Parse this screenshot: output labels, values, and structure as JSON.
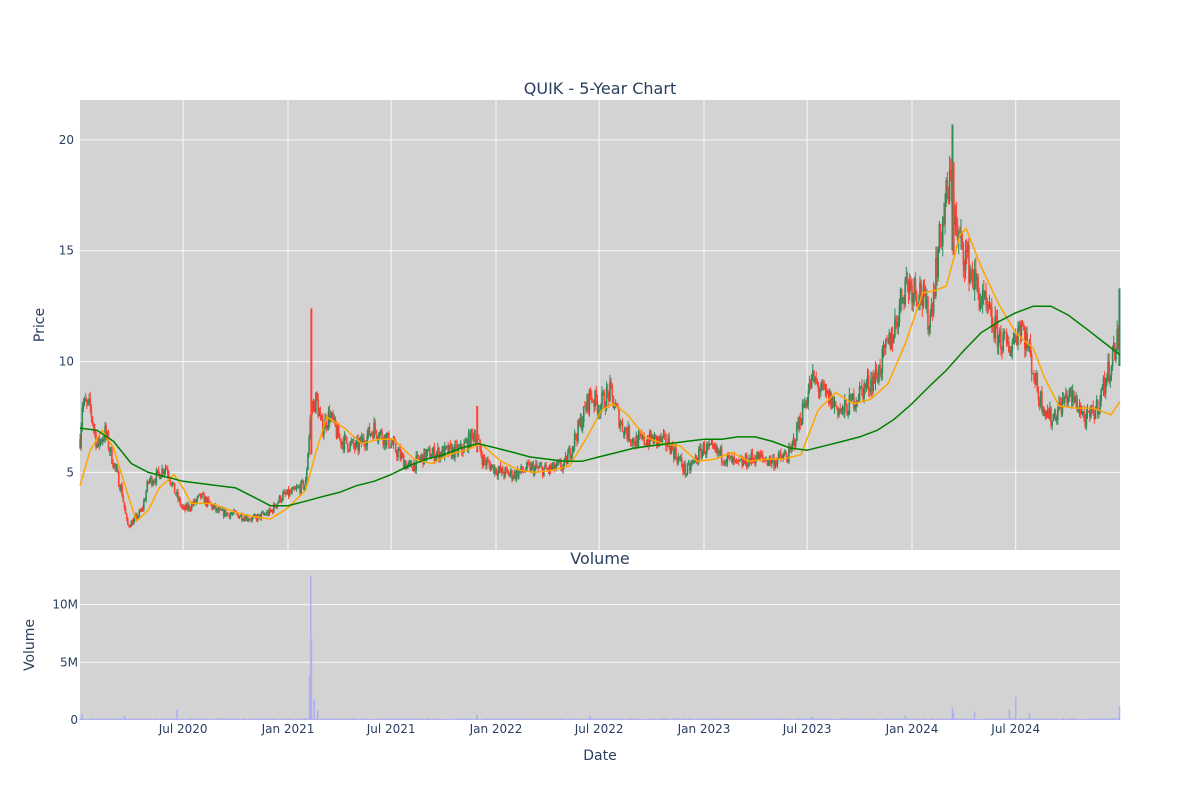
{
  "chart_data": [
    {
      "type": "candlestick",
      "title": "QUIK - 5-Year Chart",
      "ylabel": "Price",
      "xlim": [
        "2020-01-02",
        "2024-12-31"
      ],
      "ylim": [
        1.5,
        21.8
      ],
      "yticks": [
        5,
        10,
        15,
        20
      ],
      "xticks": [
        {
          "date": "2020-07-01",
          "label": "Jul 2020"
        },
        {
          "date": "2021-01-01",
          "label": "Jan 2021"
        },
        {
          "date": "2021-07-01",
          "label": "Jul 2021"
        },
        {
          "date": "2022-01-01",
          "label": "Jan 2022"
        },
        {
          "date": "2022-07-01",
          "label": "Jul 2022"
        },
        {
          "date": "2023-01-01",
          "label": "Jan 2023"
        },
        {
          "date": "2023-07-01",
          "label": "Jul 2023"
        },
        {
          "date": "2024-01-01",
          "label": "Jan 2024"
        },
        {
          "date": "2024-07-01",
          "label": "Jul 2024"
        }
      ],
      "colors": {
        "up": "#2e8b57",
        "down": "#ff4136",
        "ma_short": "#ffa500",
        "ma_long": "#008000",
        "plot_bg": "#d3d3d3"
      },
      "close_path": [
        [
          "2020-01-02",
          6.5
        ],
        [
          "2020-01-06",
          8.1
        ],
        [
          "2020-01-20",
          7.9
        ],
        [
          "2020-02-01",
          6.2
        ],
        [
          "2020-02-15",
          6.8
        ],
        [
          "2020-03-01",
          5.4
        ],
        [
          "2020-03-15",
          4.2
        ],
        [
          "2020-03-25",
          2.6
        ],
        [
          "2020-04-05",
          2.8
        ],
        [
          "2020-04-20",
          3.3
        ],
        [
          "2020-05-01",
          4.6
        ],
        [
          "2020-05-15",
          4.8
        ],
        [
          "2020-06-01",
          5.3
        ],
        [
          "2020-06-15",
          4.2
        ],
        [
          "2020-07-01",
          3.3
        ],
        [
          "2020-07-15",
          3.5
        ],
        [
          "2020-08-01",
          3.9
        ],
        [
          "2020-09-01",
          3.2
        ],
        [
          "2020-10-01",
          3.1
        ],
        [
          "2020-11-01",
          2.9
        ],
        [
          "2020-12-01",
          3.2
        ],
        [
          "2020-12-20",
          3.9
        ],
        [
          "2021-01-10",
          4.1
        ],
        [
          "2021-02-01",
          4.5
        ],
        [
          "2021-02-10",
          7.8
        ],
        [
          "2021-02-20",
          8.3
        ],
        [
          "2021-03-01",
          7.0
        ],
        [
          "2021-03-15",
          7.6
        ],
        [
          "2021-04-01",
          6.5
        ],
        [
          "2021-05-01",
          6.1
        ],
        [
          "2021-06-01",
          7.0
        ],
        [
          "2021-07-01",
          6.3
        ],
        [
          "2021-08-01",
          5.2
        ],
        [
          "2021-09-01",
          5.8
        ],
        [
          "2021-10-01",
          5.9
        ],
        [
          "2021-11-01",
          6.0
        ],
        [
          "2021-11-25",
          6.8
        ],
        [
          "2021-12-10",
          5.5
        ],
        [
          "2022-01-10",
          5.0
        ],
        [
          "2022-02-01",
          4.9
        ],
        [
          "2022-03-01",
          5.2
        ],
        [
          "2022-04-01",
          5.1
        ],
        [
          "2022-05-01",
          5.3
        ],
        [
          "2022-06-01",
          7.4
        ],
        [
          "2022-06-15",
          8.5
        ],
        [
          "2022-07-01",
          8.0
        ],
        [
          "2022-07-20",
          8.6
        ],
        [
          "2022-08-10",
          7.1
        ],
        [
          "2022-09-01",
          6.4
        ],
        [
          "2022-10-01",
          6.5
        ],
        [
          "2022-11-01",
          6.3
        ],
        [
          "2022-12-01",
          5.0
        ],
        [
          "2023-01-01",
          6.1
        ],
        [
          "2023-02-01",
          5.8
        ],
        [
          "2023-03-01",
          5.3
        ],
        [
          "2023-04-01",
          5.7
        ],
        [
          "2023-05-01",
          5.5
        ],
        [
          "2023-06-01",
          5.8
        ],
        [
          "2023-06-25",
          8.0
        ],
        [
          "2023-07-10",
          9.2
        ],
        [
          "2023-08-01",
          8.5
        ],
        [
          "2023-09-01",
          7.7
        ],
        [
          "2023-10-01",
          8.6
        ],
        [
          "2023-11-01",
          9.4
        ],
        [
          "2023-12-01",
          11.5
        ],
        [
          "2023-12-20",
          13.6
        ],
        [
          "2024-01-15",
          13.2
        ],
        [
          "2024-02-01",
          11.8
        ],
        [
          "2024-02-15",
          14.8
        ],
        [
          "2024-03-01",
          17.3
        ],
        [
          "2024-03-10",
          18.1
        ],
        [
          "2024-03-20",
          15.5
        ],
        [
          "2024-04-01",
          15.0
        ],
        [
          "2024-05-01",
          12.8
        ],
        [
          "2024-06-01",
          11.1
        ],
        [
          "2024-06-20",
          10.6
        ],
        [
          "2024-07-10",
          11.8
        ],
        [
          "2024-07-25",
          10.4
        ],
        [
          "2024-08-10",
          8.5
        ],
        [
          "2024-09-01",
          7.4
        ],
        [
          "2024-10-01",
          8.5
        ],
        [
          "2024-10-20",
          8.0
        ],
        [
          "2024-11-01",
          7.3
        ],
        [
          "2024-11-20",
          7.9
        ],
        [
          "2024-12-10",
          9.5
        ],
        [
          "2024-12-31",
          11.4
        ]
      ],
      "spikes": [
        [
          "2021-02-11",
          12.4,
          5.8,
          "down"
        ],
        [
          "2021-11-29",
          8.0,
          5.9,
          "down"
        ],
        [
          "2024-03-12",
          20.7,
          15.0,
          "up"
        ],
        [
          "2024-03-14",
          19.0,
          14.8,
          "down"
        ],
        [
          "2024-12-30",
          13.3,
          9.8,
          "up"
        ]
      ],
      "series": [
        {
          "kind": "ma_short",
          "points": [
            [
              "2020-01-02",
              4.4
            ],
            [
              "2020-01-20",
              6.0
            ],
            [
              "2020-02-10",
              6.9
            ],
            [
              "2020-03-01",
              6.1
            ],
            [
              "2020-03-20",
              4.5
            ],
            [
              "2020-04-10",
              2.8
            ],
            [
              "2020-05-01",
              3.3
            ],
            [
              "2020-05-20",
              4.3
            ],
            [
              "2020-06-15",
              4.9
            ],
            [
              "2020-07-01",
              4.3
            ],
            [
              "2020-07-15",
              3.6
            ],
            [
              "2020-08-20",
              3.6
            ],
            [
              "2020-10-01",
              3.2
            ],
            [
              "2020-11-01",
              3.0
            ],
            [
              "2020-12-01",
              2.9
            ],
            [
              "2021-01-01",
              3.4
            ],
            [
              "2021-02-01",
              4.2
            ],
            [
              "2021-02-20",
              6.0
            ],
            [
              "2021-03-10",
              7.5
            ],
            [
              "2021-04-10",
              7.0
            ],
            [
              "2021-05-10",
              6.3
            ],
            [
              "2021-06-10",
              6.5
            ],
            [
              "2021-07-05",
              6.5
            ],
            [
              "2021-08-10",
              5.6
            ],
            [
              "2021-09-10",
              5.4
            ],
            [
              "2021-10-10",
              5.8
            ],
            [
              "2021-11-10",
              6.0
            ],
            [
              "2021-12-05",
              6.3
            ],
            [
              "2022-01-10",
              5.5
            ],
            [
              "2022-02-10",
              5.1
            ],
            [
              "2022-03-10",
              5.0
            ],
            [
              "2022-04-10",
              5.1
            ],
            [
              "2022-05-10",
              5.3
            ],
            [
              "2022-06-10",
              6.6
            ],
            [
              "2022-07-05",
              7.8
            ],
            [
              "2022-07-25",
              8.1
            ],
            [
              "2022-08-20",
              7.6
            ],
            [
              "2022-09-20",
              6.6
            ],
            [
              "2022-10-20",
              6.3
            ],
            [
              "2022-11-20",
              6.2
            ],
            [
              "2022-12-20",
              5.5
            ],
            [
              "2023-01-20",
              5.6
            ],
            [
              "2023-02-20",
              5.9
            ],
            [
              "2023-03-20",
              5.5
            ],
            [
              "2023-04-20",
              5.6
            ],
            [
              "2023-05-20",
              5.6
            ],
            [
              "2023-06-20",
              5.8
            ],
            [
              "2023-07-20",
              7.8
            ],
            [
              "2023-08-20",
              8.6
            ],
            [
              "2023-09-20",
              8.1
            ],
            [
              "2023-10-20",
              8.3
            ],
            [
              "2023-11-20",
              9.0
            ],
            [
              "2023-12-20",
              10.8
            ],
            [
              "2024-01-20",
              13.1
            ],
            [
              "2024-02-10",
              13.2
            ],
            [
              "2024-03-01",
              13.4
            ],
            [
              "2024-03-25",
              15.7
            ],
            [
              "2024-04-05",
              16.0
            ],
            [
              "2024-05-01",
              14.3
            ],
            [
              "2024-06-01",
              12.6
            ],
            [
              "2024-07-01",
              11.3
            ],
            [
              "2024-08-01",
              10.6
            ],
            [
              "2024-08-20",
              9.3
            ],
            [
              "2024-09-15",
              8.0
            ],
            [
              "2024-10-15",
              7.9
            ],
            [
              "2024-11-15",
              7.9
            ],
            [
              "2024-12-15",
              7.6
            ],
            [
              "2024-12-31",
              8.2
            ]
          ]
        },
        {
          "kind": "ma_long",
          "points": [
            [
              "2020-01-02",
              7.0
            ],
            [
              "2020-02-01",
              6.9
            ],
            [
              "2020-03-01",
              6.4
            ],
            [
              "2020-04-01",
              5.4
            ],
            [
              "2020-05-01",
              5.0
            ],
            [
              "2020-06-01",
              4.8
            ],
            [
              "2020-07-01",
              4.6
            ],
            [
              "2020-08-01",
              4.5
            ],
            [
              "2020-09-01",
              4.4
            ],
            [
              "2020-10-01",
              4.3
            ],
            [
              "2020-11-01",
              3.9
            ],
            [
              "2020-12-01",
              3.5
            ],
            [
              "2021-01-01",
              3.5
            ],
            [
              "2021-02-01",
              3.7
            ],
            [
              "2021-03-01",
              3.9
            ],
            [
              "2021-04-01",
              4.1
            ],
            [
              "2021-05-01",
              4.4
            ],
            [
              "2021-06-01",
              4.6
            ],
            [
              "2021-07-01",
              4.9
            ],
            [
              "2021-08-01",
              5.3
            ],
            [
              "2021-09-01",
              5.6
            ],
            [
              "2021-10-01",
              5.8
            ],
            [
              "2021-11-01",
              6.1
            ],
            [
              "2021-12-01",
              6.3
            ],
            [
              "2022-01-01",
              6.1
            ],
            [
              "2022-02-01",
              5.9
            ],
            [
              "2022-03-01",
              5.7
            ],
            [
              "2022-04-01",
              5.6
            ],
            [
              "2022-05-01",
              5.5
            ],
            [
              "2022-06-01",
              5.5
            ],
            [
              "2022-07-01",
              5.7
            ],
            [
              "2022-08-01",
              5.9
            ],
            [
              "2022-09-01",
              6.1
            ],
            [
              "2022-10-01",
              6.2
            ],
            [
              "2022-11-01",
              6.3
            ],
            [
              "2022-12-01",
              6.4
            ],
            [
              "2023-01-01",
              6.5
            ],
            [
              "2023-02-01",
              6.5
            ],
            [
              "2023-03-01",
              6.6
            ],
            [
              "2023-04-01",
              6.6
            ],
            [
              "2023-05-01",
              6.4
            ],
            [
              "2023-06-01",
              6.1
            ],
            [
              "2023-07-01",
              6.0
            ],
            [
              "2023-08-01",
              6.2
            ],
            [
              "2023-09-01",
              6.4
            ],
            [
              "2023-10-01",
              6.6
            ],
            [
              "2023-11-01",
              6.9
            ],
            [
              "2023-12-01",
              7.4
            ],
            [
              "2024-01-01",
              8.1
            ],
            [
              "2024-02-01",
              8.9
            ],
            [
              "2024-03-01",
              9.6
            ],
            [
              "2024-04-01",
              10.5
            ],
            [
              "2024-05-01",
              11.3
            ],
            [
              "2024-06-01",
              11.8
            ],
            [
              "2024-07-01",
              12.2
            ],
            [
              "2024-08-01",
              12.5
            ],
            [
              "2024-09-01",
              12.5
            ],
            [
              "2024-10-01",
              12.1
            ],
            [
              "2024-11-01",
              11.5
            ],
            [
              "2024-12-01",
              10.9
            ],
            [
              "2024-12-31",
              10.3
            ]
          ]
        }
      ]
    },
    {
      "type": "bar",
      "title": "Volume",
      "xlabel": "Date",
      "ylabel": "Volume",
      "ylim": [
        0,
        13000000
      ],
      "yticks": [
        {
          "value": 0,
          "label": "0"
        },
        {
          "value": 5000000,
          "label": "5M"
        },
        {
          "value": 10000000,
          "label": "10M"
        }
      ],
      "xticks": [
        {
          "date": "2020-07-01",
          "label": "Jul 2020"
        },
        {
          "date": "2021-01-01",
          "label": "Jan 2021"
        },
        {
          "date": "2021-07-01",
          "label": "Jul 2021"
        },
        {
          "date": "2022-01-01",
          "label": "Jan 2022"
        },
        {
          "date": "2022-07-01",
          "label": "Jul 2022"
        },
        {
          "date": "2023-01-01",
          "label": "Jan 2023"
        },
        {
          "date": "2023-07-01",
          "label": "Jul 2023"
        },
        {
          "date": "2024-01-01",
          "label": "Jan 2024"
        },
        {
          "date": "2024-07-01",
          "label": "Jul 2024"
        }
      ],
      "bar_color": "#b0b0f0",
      "baseline_volume": 120000,
      "highlights": [
        [
          "2020-01-06",
          500000
        ],
        [
          "2020-03-20",
          350000
        ],
        [
          "2020-06-20",
          900000
        ],
        [
          "2021-02-08",
          3800000
        ],
        [
          "2021-02-10",
          12500000
        ],
        [
          "2021-02-11",
          7000000
        ],
        [
          "2021-02-16",
          1800000
        ],
        [
          "2021-02-22",
          800000
        ],
        [
          "2021-11-29",
          450000
        ],
        [
          "2022-06-15",
          350000
        ],
        [
          "2023-07-10",
          300000
        ],
        [
          "2023-12-20",
          400000
        ],
        [
          "2024-03-12",
          1100000
        ],
        [
          "2024-03-14",
          600000
        ],
        [
          "2024-04-20",
          700000
        ],
        [
          "2024-06-20",
          900000
        ],
        [
          "2024-07-01",
          2000000
        ],
        [
          "2024-07-25",
          600000
        ],
        [
          "2024-12-30",
          1200000
        ]
      ]
    }
  ]
}
